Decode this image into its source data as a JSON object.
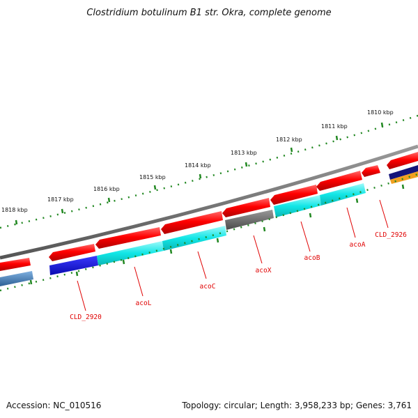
{
  "title": "Clostridium botulinum B1 str. Okra, complete genome",
  "accession": "Accession: NC_010516",
  "topology": "Topology: circular; Length: 3,958,233 bp; Genes: 3,761",
  "kbp_labels": [
    "1810 kbp",
    "1811 kbp",
    "1812 kbp",
    "1813 kbp",
    "1814 kbp",
    "1815 kbp",
    "1816 kbp",
    "1817 kbp",
    "1818 kbp"
  ],
  "gene_labels": [
    "CLD_2926",
    "acoA",
    "acoB",
    "acoX",
    "acoC",
    "acoL",
    "CLD_2920"
  ],
  "colors": {
    "backbone": "#777777",
    "ticks": "#228822",
    "gene_arrow": "#ee0000",
    "cds_cyan": "#11e6e6",
    "cds_blue": "#1a1aee",
    "cds_gray": "#666666",
    "cds_steel": "#4a7fb8",
    "cds_navy": "#14147a",
    "cds_orange": "#f0a020",
    "label": "#e00000"
  }
}
